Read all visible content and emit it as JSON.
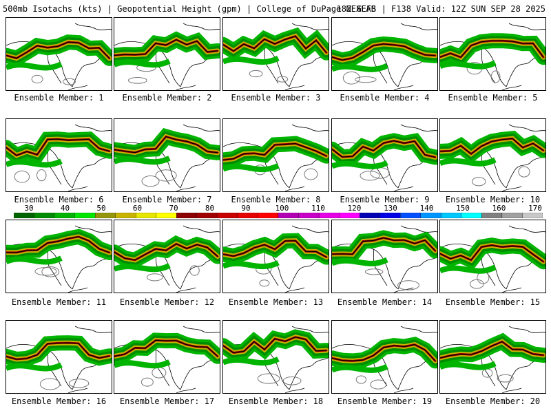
{
  "header": {
    "title": "500mb Isotachs (kts) | Geopotential Height (gpm) | College of DuPage NEXLAB",
    "run_info": "18Z GEFS | F138 Valid: 12Z SUN SEP 28 2025"
  },
  "members": [
    "Ensemble Member: 1",
    "Ensemble Member: 2",
    "Ensemble Member: 3",
    "Ensemble Member: 4",
    "Ensemble Member: 5",
    "Ensemble Member: 6",
    "Ensemble Member: 7",
    "Ensemble Member: 8",
    "Ensemble Member: 9",
    "Ensemble Member: 10",
    "Ensemble Member: 11",
    "Ensemble Member: 12",
    "Ensemble Member: 13",
    "Ensemble Member: 14",
    "Ensemble Member: 15",
    "Ensemble Member: 16",
    "Ensemble Member: 17",
    "Ensemble Member: 18",
    "Ensemble Member: 19",
    "Ensemble Member: 20"
  ],
  "colorbar": {
    "labels": [
      "30",
      "40",
      "50",
      "60",
      "70",
      "80",
      "90",
      "100",
      "110",
      "120",
      "130",
      "140",
      "150",
      "160",
      "170"
    ],
    "colors": [
      "#006400",
      "#008c00",
      "#00b400",
      "#00e600",
      "#96960a",
      "#c8b400",
      "#e6e600",
      "#ffff00",
      "#8c0000",
      "#a00000",
      "#c80000",
      "#e60000",
      "#ff0000",
      "#b400b4",
      "#c800c8",
      "#e600e6",
      "#ff00ff",
      "#0000b4",
      "#0000e6",
      "#0050ff",
      "#0096ff",
      "#00c8ff",
      "#00ffff",
      "#808080",
      "#a0a0a0",
      "#c8c8c8"
    ]
  }
}
